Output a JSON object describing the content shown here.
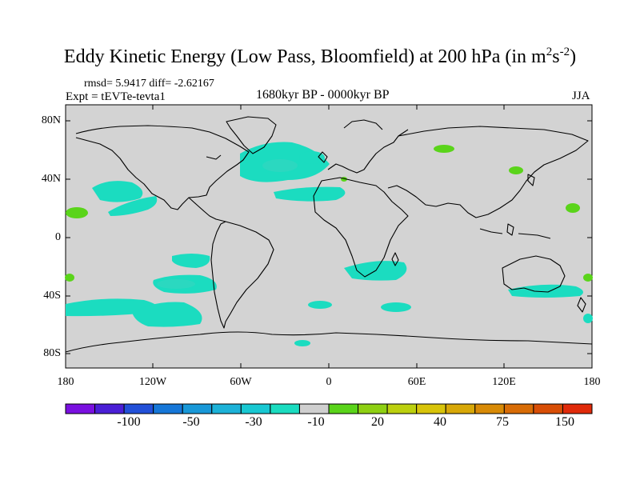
{
  "title": {
    "main": "Eddy Kinetic Energy (Low Pass, Bloomfield) at 200 hPa (in m",
    "sup1": "2",
    "mid": "s",
    "sup2": "-2",
    "end": ")"
  },
  "stats": "rmsd= 5.9417 diff= -2.62167",
  "experiment": "Expt = tEVTe-tevta1",
  "period": "1680kyr BP - 0000kyr BP",
  "season": "JJA",
  "map": {
    "lat_labels": [
      "80N",
      "40N",
      "0",
      "40S",
      "80S"
    ],
    "lon_labels": [
      "180",
      "120W",
      "60W",
      "0",
      "60E",
      "120E",
      "180"
    ],
    "background_color": "#d3d3d3",
    "coastline_color": "#000000"
  },
  "colorbar": {
    "colors": [
      "#7a10e0",
      "#4a1fd6",
      "#2250d8",
      "#1677d8",
      "#1898d8",
      "#1cb2d8",
      "#18c8d2",
      "#1bdcc0",
      "#cfcfcf",
      "#5ad41a",
      "#8ed012",
      "#bcd00e",
      "#d8c40a",
      "#d8a808",
      "#d88a06",
      "#d86c06",
      "#d84e06",
      "#e02a0a"
    ],
    "labels": [
      "-100",
      "-50",
      "-30",
      "-10",
      "20",
      "40",
      "75",
      "150"
    ]
  }
}
